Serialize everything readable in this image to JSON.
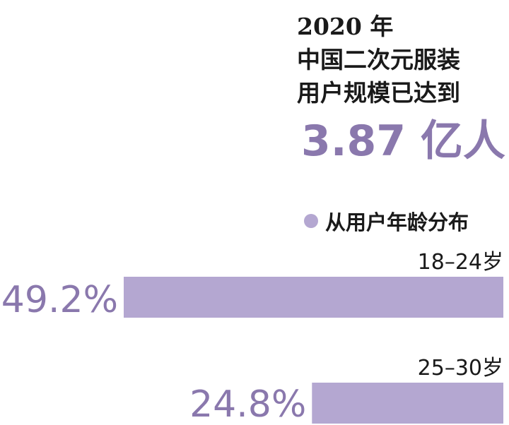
{
  "headline": {
    "line1": "2020 年",
    "line2": "中国二次元服装",
    "line3": "用户规模已达到"
  },
  "big_number": "3.87 亿人",
  "legend": {
    "label": "从用户年龄分布"
  },
  "colors": {
    "accent": "#8a78ad",
    "bar": "#b4a7d1",
    "text": "#1a1a1a"
  },
  "chart_data": {
    "type": "bar",
    "orientation": "horizontal",
    "legend": [
      "从用户年龄分布"
    ],
    "categories": [
      "18–24岁",
      "25–30岁"
    ],
    "values": [
      49.2,
      24.8
    ],
    "value_labels": [
      "49.2%",
      "24.8%"
    ],
    "unit": "%"
  }
}
